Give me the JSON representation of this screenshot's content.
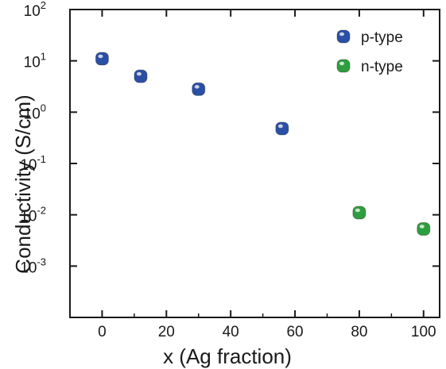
{
  "chart_data": {
    "type": "scatter",
    "title": "",
    "xlabel": "x (Ag fraction)",
    "ylabel": "Conductivity (S/cm)",
    "xlim": [
      -10,
      105
    ],
    "ylim": [
      0.0001,
      100
    ],
    "y_scale": "log",
    "grid": false,
    "legend_position": "top-right",
    "x_ticks": [
      "0",
      "20",
      "40",
      "60",
      "80",
      "100"
    ],
    "x_tick_values": [
      0,
      20,
      40,
      60,
      80,
      100
    ],
    "y_ticks": [
      {
        "base": "10",
        "exp": "2",
        "value": 100
      },
      {
        "base": "10",
        "exp": "1",
        "value": 10
      },
      {
        "base": "10",
        "exp": "0",
        "value": 1
      },
      {
        "base": "10",
        "exp": "-1",
        "value": 0.1
      },
      {
        "base": "10",
        "exp": "-2",
        "value": 0.01
      },
      {
        "base": "10",
        "exp": "-3",
        "value": 0.001
      }
    ],
    "series": [
      {
        "name": "p-type",
        "color": "#2a4fa6",
        "points": [
          {
            "x": 0,
            "y": 11
          },
          {
            "x": 12,
            "y": 5
          },
          {
            "x": 30,
            "y": 2.8
          },
          {
            "x": 56,
            "y": 0.48
          }
        ]
      },
      {
        "name": "n-type",
        "color": "#2e9e3e",
        "points": [
          {
            "x": 80,
            "y": 0.011
          },
          {
            "x": 100,
            "y": 0.0053
          }
        ]
      }
    ]
  }
}
